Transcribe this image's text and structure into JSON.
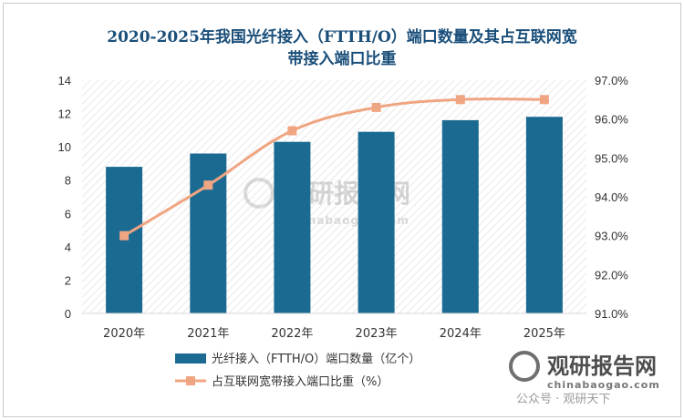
{
  "chart_data": {
    "type": "bar",
    "title": "2020-2025年我国光纤接入（FTTH/O）端口数量及其占互联网宽带接入端口比重",
    "title_lines": [
      "2020-2025年我国光纤接入（FTTH/O）端口数量及其占互联网宽",
      "带接入端口比重"
    ],
    "categories": [
      "2020年",
      "2021年",
      "2022年",
      "2023年",
      "2024年",
      "2025年"
    ],
    "series": [
      {
        "name": "光纤接入（FTTH/O）端口数量（亿个）",
        "type": "bar",
        "axis": "left",
        "color": "#1a6a91",
        "values": [
          8.8,
          9.6,
          10.3,
          10.9,
          11.6,
          11.8
        ]
      },
      {
        "name": "占互联网宽带接入端口比重（%）",
        "type": "line",
        "axis": "right",
        "color": "#f0a582",
        "values": [
          93.0,
          94.3,
          95.7,
          96.3,
          96.5,
          96.5
        ]
      }
    ],
    "y_left": {
      "min": 0,
      "max": 14,
      "ticks": [
        "0",
        "2",
        "4",
        "6",
        "8",
        "10",
        "12",
        "14"
      ]
    },
    "y_right": {
      "min": 91.0,
      "max": 97.0,
      "ticks": [
        "91.0%",
        "92.0%",
        "93.0%",
        "94.0%",
        "95.0%",
        "96.0%",
        "97.0%"
      ]
    },
    "grid": false,
    "legend_position": "bottom-left"
  },
  "watermark": {
    "center_text": "观研报告网",
    "center_subtext": "chinabaogao.com",
    "corner_text": "观研报告网",
    "corner_subtext": "chinabaogao.com",
    "account_text": "公众号 · 观研天下"
  },
  "colors": {
    "title": "#1a4f7a",
    "bar": "#1a6a91",
    "line": "#f0a582",
    "plot_pattern": "#e6e6e6"
  }
}
